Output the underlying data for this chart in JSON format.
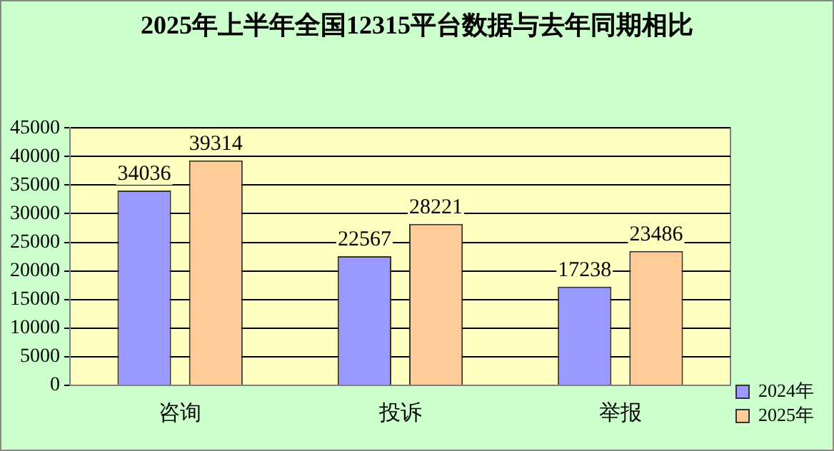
{
  "chart_data": {
    "type": "bar",
    "title": "2025年上半年全国12315平台数据与去年同期相比",
    "categories": [
      "咨询",
      "投诉",
      "举报"
    ],
    "series": [
      {
        "name": "2024年",
        "color": "#9999ff",
        "values": [
          34036,
          22567,
          17238
        ]
      },
      {
        "name": "2025年",
        "color": "#ffcc99",
        "values": [
          39314,
          28221,
          23486
        ]
      }
    ],
    "ylim": [
      0,
      45000
    ],
    "yticks": [
      0,
      5000,
      10000,
      15000,
      20000,
      25000,
      30000,
      35000,
      40000,
      45000
    ],
    "grid": "y",
    "legend": "bottom right",
    "data_labels": true
  }
}
